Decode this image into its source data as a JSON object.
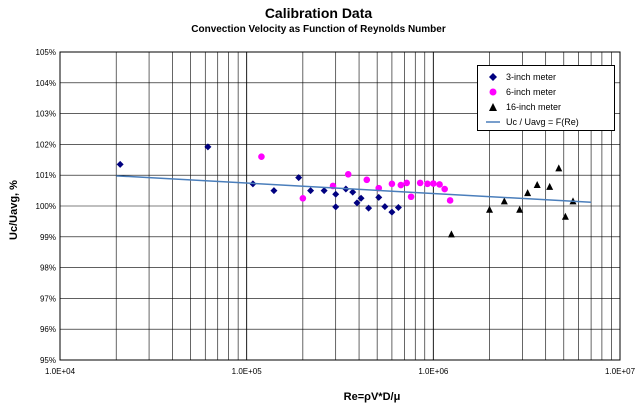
{
  "chart_data": {
    "type": "scatter",
    "title": "Calibration Data",
    "subtitle": "Convection Velocity as Function of Reynolds Number",
    "xlabel": "Re=ρV*D/μ",
    "ylabel": "Uc/Uavg, %",
    "x_scale": "log",
    "xlim": [
      10000,
      10000000
    ],
    "ylim": [
      95,
      105
    ],
    "x_ticks": [
      "1.0E+04",
      "1.0E+05",
      "1.0E+06",
      "1.0E+07"
    ],
    "y_ticks": [
      "95%",
      "96%",
      "97%",
      "98%",
      "99%",
      "100%",
      "101%",
      "102%",
      "103%",
      "104%",
      "105%"
    ],
    "grid": true,
    "legend_position": "top-right",
    "series": [
      {
        "name": "3-inch meter",
        "marker": "diamond",
        "color": "#000080",
        "points": [
          [
            21000,
            101.35
          ],
          [
            62000,
            101.92
          ],
          [
            108000,
            100.72
          ],
          [
            140000,
            100.5
          ],
          [
            190000,
            100.92
          ],
          [
            220000,
            100.5
          ],
          [
            260000,
            100.5
          ],
          [
            300000,
            100.38
          ],
          [
            300000,
            99.97
          ],
          [
            340000,
            100.55
          ],
          [
            370000,
            100.45
          ],
          [
            390000,
            100.1
          ],
          [
            410000,
            100.25
          ],
          [
            450000,
            99.93
          ],
          [
            510000,
            100.28
          ],
          [
            550000,
            99.98
          ],
          [
            600000,
            99.8
          ],
          [
            650000,
            99.95
          ]
        ]
      },
      {
        "name": "6-inch meter",
        "marker": "circle",
        "color": "#ff00ff",
        "points": [
          [
            120000,
            101.6
          ],
          [
            200000,
            100.25
          ],
          [
            290000,
            100.65
          ],
          [
            350000,
            101.03
          ],
          [
            440000,
            100.85
          ],
          [
            510000,
            100.58
          ],
          [
            600000,
            100.72
          ],
          [
            670000,
            100.68
          ],
          [
            720000,
            100.75
          ],
          [
            760000,
            100.3
          ],
          [
            850000,
            100.75
          ],
          [
            930000,
            100.72
          ],
          [
            1000000,
            100.73
          ],
          [
            1080000,
            100.7
          ],
          [
            1150000,
            100.55
          ],
          [
            1230000,
            100.18
          ]
        ]
      },
      {
        "name": "16-inch meter",
        "marker": "triangle",
        "color": "#000000",
        "points": [
          [
            1250000,
            99.08
          ],
          [
            2000000,
            99.88
          ],
          [
            2400000,
            100.15
          ],
          [
            2900000,
            99.88
          ],
          [
            3200000,
            100.42
          ],
          [
            3600000,
            100.68
          ],
          [
            4200000,
            100.62
          ],
          [
            4700000,
            101.22
          ],
          [
            5100000,
            99.65
          ],
          [
            5600000,
            100.15
          ]
        ]
      },
      {
        "name": "Uc / Uavg = F(Re)",
        "type": "line",
        "color": "#4a7ebb",
        "points": [
          [
            20000,
            100.98
          ],
          [
            7000000,
            100.12
          ]
        ]
      }
    ]
  }
}
